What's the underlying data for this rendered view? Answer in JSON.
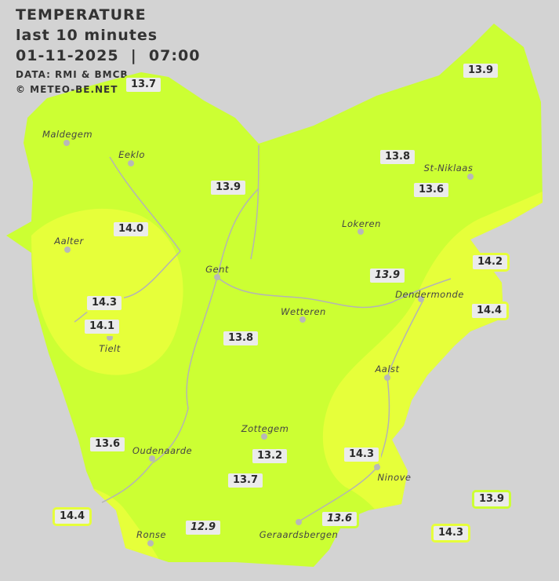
{
  "header": {
    "title": "TEMPERATURE",
    "subtitle": "last 10 minutes",
    "datetime": "01-11-2025  |  07:00",
    "source": "DATA: RMI & BMCB",
    "copyright": "© METEO-BE.NET"
  },
  "colors": {
    "background": "#d3d3d3",
    "temp_13": "#ccff33",
    "temp_14": "#e6ff3a",
    "label_bg": "#ebebeb"
  },
  "cities": [
    {
      "name": "Maldegem"
    },
    {
      "name": "Eeklo"
    },
    {
      "name": "Aalter"
    },
    {
      "name": "Gent"
    },
    {
      "name": "Lokeren"
    },
    {
      "name": "St-Niklaas"
    },
    {
      "name": "Dendermonde"
    },
    {
      "name": "Wetteren"
    },
    {
      "name": "Aalst"
    },
    {
      "name": "Zottegem"
    },
    {
      "name": "Oudenaarde"
    },
    {
      "name": "Ronse"
    },
    {
      "name": "Geraardsbergen"
    },
    {
      "name": "Ninove"
    },
    {
      "name": "Tielt"
    }
  ],
  "stations": [
    {
      "value": "13.7"
    },
    {
      "value": "13.9"
    },
    {
      "value": "13.8"
    },
    {
      "value": "13.6"
    },
    {
      "value": "13.9"
    },
    {
      "value": "14.0"
    },
    {
      "value": "14.2"
    },
    {
      "value": "13.9",
      "italic": true
    },
    {
      "value": "14.4"
    },
    {
      "value": "14.3"
    },
    {
      "value": "14.1"
    },
    {
      "value": "13.8"
    },
    {
      "value": "13.6"
    },
    {
      "value": "13.2"
    },
    {
      "value": "14.3"
    },
    {
      "value": "13.7"
    },
    {
      "value": "13.9"
    },
    {
      "value": "14.4"
    },
    {
      "value": "12.9",
      "italic": true
    },
    {
      "value": "13.6",
      "italic": true
    },
    {
      "value": "14.3"
    }
  ]
}
